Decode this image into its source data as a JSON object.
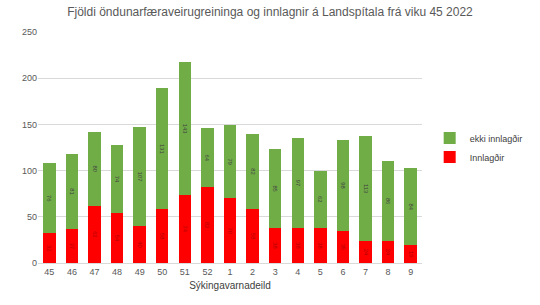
{
  "chart_data": {
    "type": "bar",
    "title": "Fjöldi öndunarfæraveirugreininga og innlagnir á Landspítala frá viku 45 2022",
    "x_label": "Sýkingavarnadeild",
    "categories": [
      "45",
      "46",
      "47",
      "48",
      "49",
      "50",
      "51",
      "52",
      "1",
      "2",
      "3",
      "4",
      "5",
      "6",
      "7",
      "8",
      "9"
    ],
    "series": [
      {
        "name": "Innlagðir",
        "color": "#ff0000",
        "values": [
          32,
          37,
          62,
          54,
          40,
          58,
          74,
          82,
          70,
          58,
          38,
          38,
          38,
          35,
          24,
          24,
          19
        ]
      },
      {
        "name": "ekki innlagðir",
        "color": "#70ad47",
        "values": [
          76,
          81,
          80,
          74,
          107,
          131,
          143,
          64,
          79,
          82,
          85,
          97,
          62,
          98,
          113,
          86,
          84
        ]
      }
    ],
    "stacked": true,
    "data_labels": true,
    "ylim": [
      0,
      250
    ],
    "yticks": [
      0,
      50,
      100,
      150,
      200,
      250
    ],
    "grid": true,
    "legend": "right"
  }
}
